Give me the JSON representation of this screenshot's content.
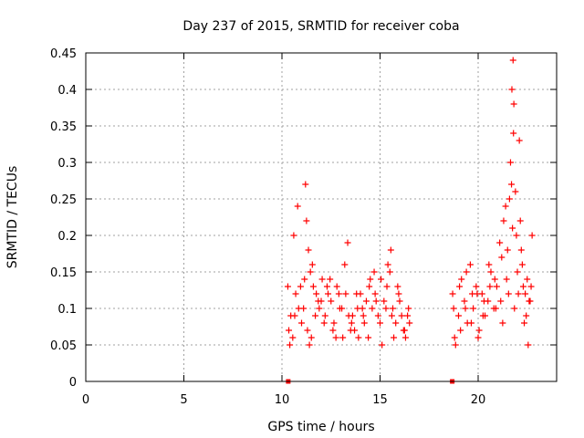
{
  "chart_data": {
    "type": "scatter",
    "title": "Day 237 of 2015, SRMTID for receiver coba",
    "xlabel": "GPS time / hours",
    "ylabel": "SRMTID / TECUs",
    "xlim": [
      0,
      24
    ],
    "ylim": [
      0,
      0.45
    ],
    "xticks": [
      0,
      5,
      10,
      15,
      20
    ],
    "xtick_labels": [
      "0",
      "5",
      "10",
      "15",
      "20"
    ],
    "yticks": [
      0,
      0.05,
      0.1,
      0.15,
      0.2,
      0.25,
      0.3,
      0.35,
      0.4,
      0.45
    ],
    "ytick_labels": [
      "0",
      "0.05",
      "0.1",
      "0.15",
      "0.2",
      "0.25",
      "0.3",
      "0.35",
      "0.4",
      "0.45"
    ],
    "grid": true,
    "marker": "plus",
    "marker_color": "#ff0000",
    "series": [
      {
        "name": "SRMTID",
        "x": [
          10.3,
          10.45,
          10.55,
          10.7,
          10.85,
          11.0,
          11.15,
          11.3,
          11.45,
          11.6,
          11.75,
          11.9,
          12.05,
          12.2,
          12.35,
          12.5,
          12.65,
          12.8,
          12.95,
          13.1,
          13.25,
          13.4,
          13.55,
          13.7,
          13.85,
          14.0,
          14.15,
          14.3,
          14.45,
          14.6,
          14.75,
          14.9,
          15.05,
          15.2,
          15.35,
          15.5,
          15.65,
          15.8,
          15.95,
          16.1,
          16.25,
          16.4,
          16.5,
          10.4,
          10.6,
          10.8,
          11.1,
          11.2,
          11.25,
          11.35,
          11.5,
          11.7,
          12.0,
          12.3,
          12.6,
          12.9,
          13.2,
          13.35,
          13.6,
          13.9,
          14.2,
          14.5,
          14.8,
          15.1,
          15.4,
          15.55,
          15.7,
          16.0,
          16.3,
          10.35,
          10.65,
          10.95,
          11.4,
          11.55,
          11.85,
          12.15,
          12.45,
          12.75,
          13.05,
          13.5,
          13.8,
          14.1,
          14.4,
          14.7,
          15.0,
          15.3,
          15.6,
          15.9,
          16.2,
          16.45,
          18.7,
          18.85,
          19.0,
          19.15,
          19.3,
          19.45,
          19.6,
          19.75,
          19.9,
          20.05,
          20.2,
          20.35,
          20.5,
          20.65,
          20.8,
          20.95,
          21.1,
          21.25,
          21.4,
          21.55,
          21.7,
          21.85,
          22.0,
          22.15,
          22.3,
          22.45,
          22.6,
          22.75,
          18.8,
          19.05,
          19.35,
          19.65,
          19.95,
          20.25,
          20.55,
          20.85,
          21.15,
          21.3,
          21.5,
          21.65,
          21.75,
          21.8,
          21.9,
          22.05,
          22.2,
          22.35,
          22.5,
          22.65,
          18.75,
          19.1,
          19.4,
          19.7,
          20.0,
          20.3,
          20.6,
          20.9,
          21.2,
          21.45,
          21.6,
          21.72,
          21.78,
          21.82,
          21.95,
          22.1,
          22.25,
          22.4,
          22.55,
          22.7,
          10.32,
          18.68
        ],
        "y": [
          0.13,
          0.09,
          0.06,
          0.12,
          0.1,
          0.08,
          0.14,
          0.07,
          0.15,
          0.13,
          0.12,
          0.1,
          0.14,
          0.09,
          0.12,
          0.11,
          0.08,
          0.13,
          0.1,
          0.06,
          0.12,
          0.09,
          0.08,
          0.07,
          0.1,
          0.12,
          0.09,
          0.11,
          0.13,
          0.1,
          0.12,
          0.09,
          0.14,
          0.11,
          0.13,
          0.15,
          0.1,
          0.08,
          0.12,
          0.09,
          0.07,
          0.09,
          0.08,
          0.05,
          0.2,
          0.24,
          0.1,
          0.27,
          0.22,
          0.18,
          0.06,
          0.09,
          0.11,
          0.13,
          0.07,
          0.12,
          0.16,
          0.19,
          0.09,
          0.06,
          0.08,
          0.14,
          0.11,
          0.05,
          0.16,
          0.18,
          0.06,
          0.11,
          0.06,
          0.07,
          0.09,
          0.13,
          0.05,
          0.16,
          0.11,
          0.08,
          0.14,
          0.06,
          0.1,
          0.07,
          0.12,
          0.1,
          0.06,
          0.15,
          0.08,
          0.1,
          0.09,
          0.13,
          0.07,
          0.1,
          0.12,
          0.05,
          0.09,
          0.14,
          0.11,
          0.08,
          0.16,
          0.1,
          0.13,
          0.07,
          0.12,
          0.09,
          0.11,
          0.15,
          0.1,
          0.13,
          0.19,
          0.08,
          0.24,
          0.12,
          0.27,
          0.1,
          0.15,
          0.22,
          0.13,
          0.09,
          0.11,
          0.2,
          0.06,
          0.13,
          0.1,
          0.08,
          0.12,
          0.09,
          0.16,
          0.14,
          0.11,
          0.22,
          0.18,
          0.3,
          0.21,
          0.34,
          0.26,
          0.12,
          0.18,
          0.08,
          0.14,
          0.11,
          0.1,
          0.07,
          0.15,
          0.12,
          0.06,
          0.11,
          0.13,
          0.1,
          0.17,
          0.14,
          0.25,
          0.4,
          0.44,
          0.38,
          0.2,
          0.33,
          0.16,
          0.12,
          0.05,
          0.13,
          0.0,
          0.0
        ]
      }
    ]
  }
}
